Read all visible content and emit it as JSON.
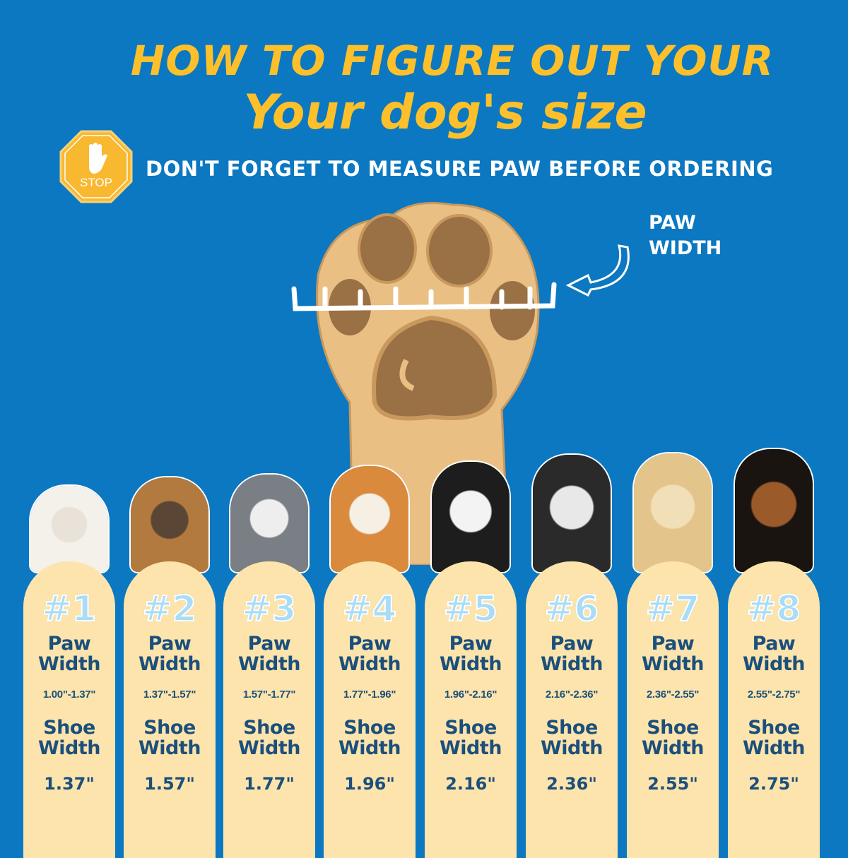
{
  "header": {
    "title_line1": "HOW TO FIGURE OUT YOUR",
    "title_line2": "Your dog's size",
    "stop_sign_text": "STOP",
    "subtitle": "DON'T FORGET TO MEASURE PAW BEFORE ORDERING"
  },
  "diagram": {
    "paw_width_label_line1": "PAW",
    "paw_width_label_line2": "WIDTH"
  },
  "colors": {
    "background": "#0b78c1",
    "title": "#fdc02a",
    "card": "#fde4ac",
    "card_text": "#1b4f7c",
    "number": "#a9dcf7"
  },
  "sizes": [
    {
      "number": "#1",
      "paw_label": [
        "Paw",
        "Width"
      ],
      "paw_width": "1.00\"-1.37\"",
      "shoe_label": [
        "Shoe",
        "Width"
      ],
      "shoe_width": "1.37\""
    },
    {
      "number": "#2",
      "paw_label": [
        "Paw",
        "Width"
      ],
      "paw_width": "1.37\"-1.57\"",
      "shoe_label": [
        "Shoe",
        "Width"
      ],
      "shoe_width": "1.57\""
    },
    {
      "number": "#3",
      "paw_label": [
        "Paw",
        "Width"
      ],
      "paw_width": "1.57\"-1.77\"",
      "shoe_label": [
        "Shoe",
        "Width"
      ],
      "shoe_width": "1.77\""
    },
    {
      "number": "#4",
      "paw_label": [
        "Paw",
        "Width"
      ],
      "paw_width": "1.77\"-1.96\"",
      "shoe_label": [
        "Shoe",
        "Width"
      ],
      "shoe_width": "1.96\""
    },
    {
      "number": "#5",
      "paw_label": [
        "Paw",
        "Width"
      ],
      "paw_width": "1.96\"-2.16\"",
      "shoe_label": [
        "Shoe",
        "Width"
      ],
      "shoe_width": "2.16\""
    },
    {
      "number": "#6",
      "paw_label": [
        "Paw",
        "Width"
      ],
      "paw_width": "2.16\"-2.36\"",
      "shoe_label": [
        "Shoe",
        "Width"
      ],
      "shoe_width": "2.36\""
    },
    {
      "number": "#7",
      "paw_label": [
        "Paw",
        "Width"
      ],
      "paw_width": "2.36\"-2.55\"",
      "shoe_label": [
        "Shoe",
        "Width"
      ],
      "shoe_width": "2.55\""
    },
    {
      "number": "#8",
      "paw_label": [
        "Paw",
        "Width"
      ],
      "paw_width": "2.55\"-2.75\"",
      "shoe_label": [
        "Shoe",
        "Width"
      ],
      "shoe_width": "2.75\""
    }
  ]
}
